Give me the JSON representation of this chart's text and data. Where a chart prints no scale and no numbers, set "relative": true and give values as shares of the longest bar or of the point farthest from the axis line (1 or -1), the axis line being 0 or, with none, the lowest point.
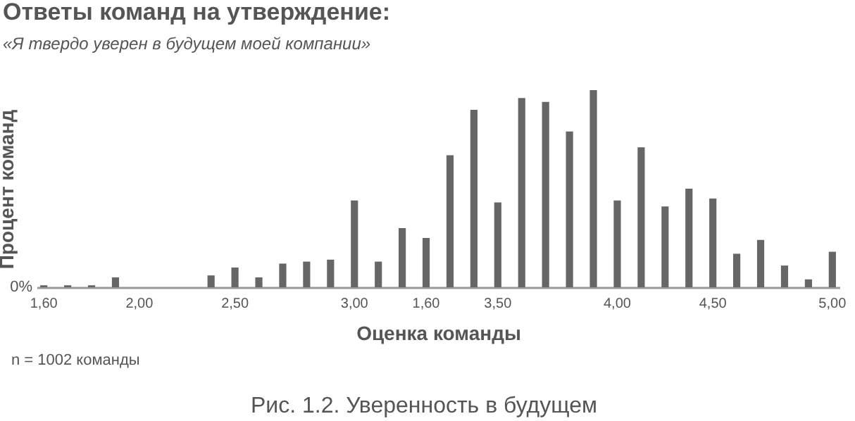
{
  "chart_data": {
    "type": "bar",
    "title": "Ответы команд на утверждение:",
    "subtitle": "«Я твердо уверен в будущем моей компании»",
    "xlabel": "Оценка команды",
    "ylabel": "Процент команд",
    "relative": true,
    "color": "#666666",
    "categories": [
      "1,60",
      null,
      null,
      null,
      "2,00",
      null,
      null,
      null,
      "2,50",
      null,
      null,
      null,
      null,
      "3,00",
      null,
      null,
      "1,60",
      null,
      null,
      "3,50",
      null,
      null,
      null,
      null,
      "4,00",
      null,
      null,
      null,
      "4,50",
      null,
      null,
      null,
      null,
      "5,00"
    ],
    "values": [
      0.01,
      0.01,
      0.01,
      0.05,
      0,
      0,
      0,
      0.06,
      0.1,
      0.05,
      0.12,
      0.13,
      0.14,
      0.44,
      0.13,
      0.3,
      0.25,
      0.67,
      0.9,
      0.43,
      0.96,
      0.94,
      0.79,
      1,
      0.44,
      0.71,
      0.41,
      0.5,
      0.45,
      0.17,
      0.24,
      0.11,
      0.04,
      0.18
    ],
    "annotations": [
      "0%",
      "n = 1002 команды",
      "Рис. 1.2. Уверенность в будущем"
    ]
  }
}
